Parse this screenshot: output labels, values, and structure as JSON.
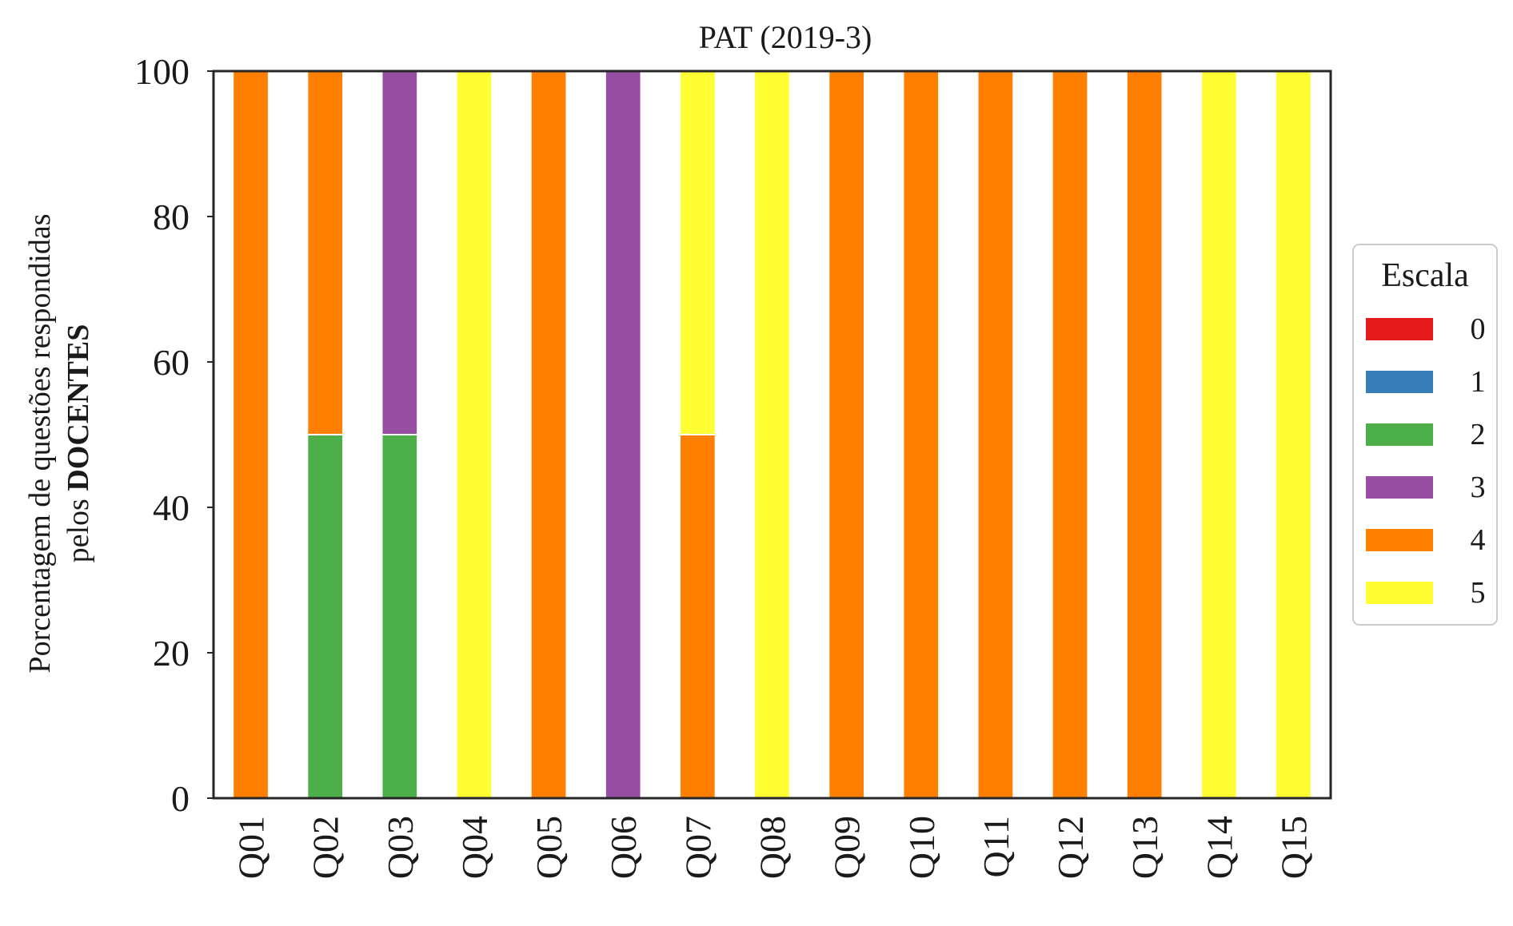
{
  "chart_data": {
    "type": "bar",
    "stacked": true,
    "title": "PAT (2019-3)",
    "ylabel_line1": "Porcentagem de questões respondidas",
    "ylabel_line2_prefix": "pelos ",
    "ylabel_line2_bold": "DOCENTES",
    "xlabel": "",
    "ylim": [
      0,
      100
    ],
    "yticks": [
      0,
      20,
      40,
      60,
      80,
      100
    ],
    "grid": false,
    "legend": {
      "title": "Escala",
      "placement": "right-center"
    },
    "categories": [
      "Q01",
      "Q02",
      "Q03",
      "Q04",
      "Q05",
      "Q06",
      "Q07",
      "Q08",
      "Q09",
      "Q10",
      "Q11",
      "Q12",
      "Q13",
      "Q14",
      "Q15"
    ],
    "series": [
      {
        "name": "0",
        "color": "#e41a1c",
        "values": [
          0,
          0,
          0,
          0,
          0,
          0,
          0,
          0,
          0,
          0,
          0,
          0,
          0,
          0,
          0
        ]
      },
      {
        "name": "1",
        "color": "#377eb8",
        "values": [
          0,
          0,
          0,
          0,
          0,
          0,
          0,
          0,
          0,
          0,
          0,
          0,
          0,
          0,
          0
        ]
      },
      {
        "name": "2",
        "color": "#4daf4a",
        "values": [
          0,
          50,
          50,
          0,
          0,
          0,
          0,
          0,
          0,
          0,
          0,
          0,
          0,
          0,
          0
        ]
      },
      {
        "name": "3",
        "color": "#984ea3",
        "values": [
          0,
          0,
          50,
          0,
          0,
          100,
          0,
          0,
          0,
          0,
          0,
          0,
          0,
          0,
          0
        ]
      },
      {
        "name": "4",
        "color": "#ff7f00",
        "values": [
          100,
          50,
          0,
          0,
          100,
          0,
          50,
          0,
          100,
          100,
          100,
          100,
          100,
          0,
          0
        ]
      },
      {
        "name": "5",
        "color": "#ffff33",
        "values": [
          0,
          0,
          0,
          100,
          0,
          0,
          50,
          100,
          0,
          0,
          0,
          0,
          0,
          100,
          100
        ]
      }
    ]
  }
}
